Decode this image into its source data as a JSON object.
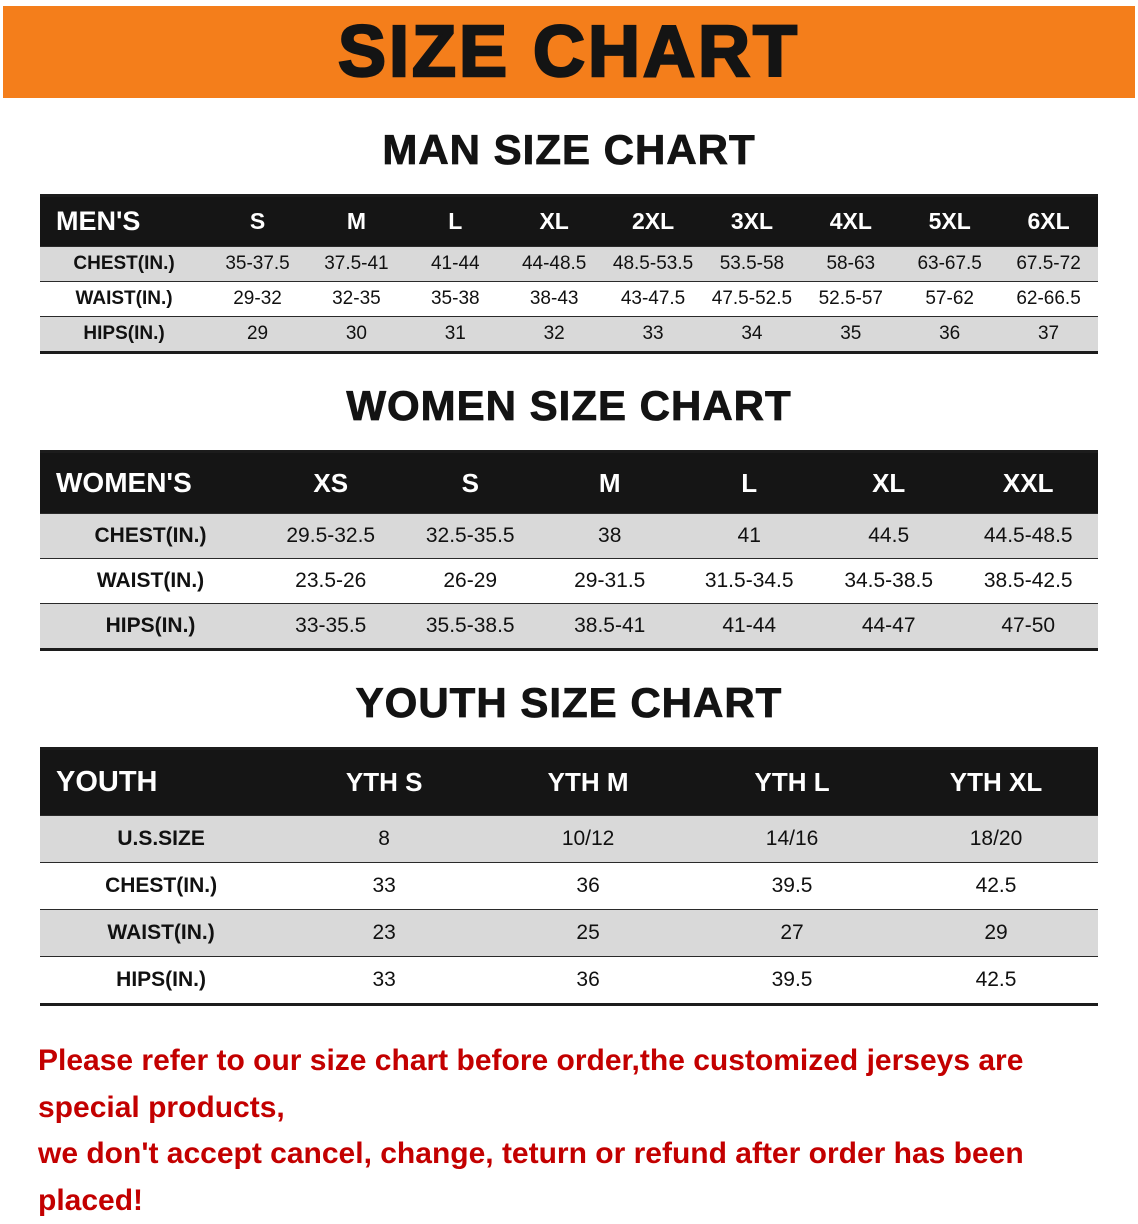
{
  "banner": {
    "title": "SIZE CHART",
    "background_color": "#f47e1b"
  },
  "sections": [
    {
      "heading": "MAN SIZE CHART",
      "table": {
        "header": [
          "MEN'S",
          "S",
          "M",
          "L",
          "XL",
          "2XL",
          "3XL",
          "4XL",
          "5XL",
          "6XL"
        ],
        "rows": [
          [
            "CHEST(IN.)",
            "35-37.5",
            "37.5-41",
            "41-44",
            "44-48.5",
            "48.5-53.5",
            "53.5-58",
            "58-63",
            "63-67.5",
            "67.5-72"
          ],
          [
            "WAIST(IN.)",
            "29-32",
            "32-35",
            "35-38",
            "38-43",
            "43-47.5",
            "47.5-52.5",
            "52.5-57",
            "57-62",
            "62-66.5"
          ],
          [
            "HIPS(IN.)",
            "29",
            "30",
            "31",
            "32",
            "33",
            "34",
            "35",
            "36",
            "37"
          ]
        ]
      }
    },
    {
      "heading": "WOMEN SIZE CHART",
      "table": {
        "header": [
          "WOMEN'S",
          "XS",
          "S",
          "M",
          "L",
          "XL",
          "XXL"
        ],
        "rows": [
          [
            "CHEST(IN.)",
            "29.5-32.5",
            "32.5-35.5",
            "38",
            "41",
            "44.5",
            "44.5-48.5"
          ],
          [
            "WAIST(IN.)",
            "23.5-26",
            "26-29",
            "29-31.5",
            "31.5-34.5",
            "34.5-38.5",
            "38.5-42.5"
          ],
          [
            "HIPS(IN.)",
            "33-35.5",
            "35.5-38.5",
            "38.5-41",
            "41-44",
            "44-47",
            "47-50"
          ]
        ]
      }
    },
    {
      "heading": "YOUTH SIZE CHART",
      "table": {
        "header": [
          "YOUTH",
          "YTH S",
          "YTH M",
          "YTH L",
          "YTH XL"
        ],
        "rows": [
          [
            "U.S.SIZE",
            "8",
            "10/12",
            "14/16",
            "18/20"
          ],
          [
            "CHEST(IN.)",
            "33",
            "36",
            "39.5",
            "42.5"
          ],
          [
            "WAIST(IN.)",
            "23",
            "25",
            "27",
            "29"
          ],
          [
            "HIPS(IN.)",
            "33",
            "36",
            "39.5",
            "42.5"
          ]
        ]
      }
    }
  ],
  "notice": {
    "lines": [
      "Please refer to our size chart before order,the customized jerseys are special products,",
      "we don't accept cancel, change, teturn or refund after order has been placed!"
    ],
    "text_color": "#c30000"
  },
  "colors": {
    "banner_bg": "#f47e1b",
    "table_header_bg": "#151515",
    "row_stripe": "#d9d9d9",
    "notice_text": "#c30000"
  }
}
